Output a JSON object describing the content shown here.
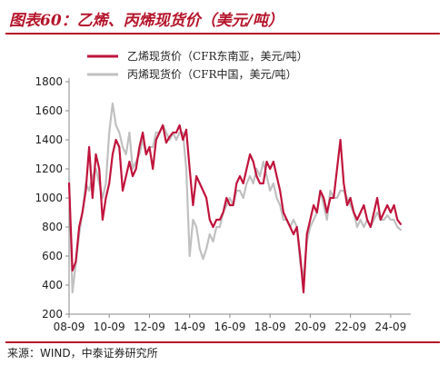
{
  "header": {
    "title": "图表60：乙烯、丙烯现货价（美元/吨）"
  },
  "footer": {
    "source": "来源：WIND，中泰证券研究所"
  },
  "colors": {
    "accent": "#b5152b",
    "ethylene": "#c0143c",
    "propylene": "#c0c0c0",
    "axis": "#888888"
  },
  "chart_data": {
    "type": "line",
    "title": "",
    "xlabel": "",
    "ylabel": "",
    "x_tick_labels": [
      "08-09",
      "10-09",
      "12-09",
      "14-09",
      "16-09",
      "18-09",
      "20-09",
      "22-09",
      "24-09"
    ],
    "y_ticks": [
      200,
      400,
      600,
      800,
      1000,
      1200,
      1400,
      1600,
      1800
    ],
    "xlim": [
      "2008-09",
      "2025-09"
    ],
    "ylim": [
      200,
      1800
    ],
    "grid": false,
    "legend_position": "top",
    "series": [
      {
        "name": "乙烯现货价（CFR东南亚，美元/吨）",
        "color": "#c0143c",
        "x": [
          "2008-09",
          "2008-11",
          "2009-01",
          "2009-03",
          "2009-05",
          "2009-07",
          "2009-09",
          "2009-11",
          "2010-01",
          "2010-03",
          "2010-05",
          "2010-07",
          "2010-09",
          "2010-11",
          "2011-01",
          "2011-03",
          "2011-05",
          "2011-07",
          "2011-09",
          "2011-11",
          "2012-01",
          "2012-03",
          "2012-05",
          "2012-07",
          "2012-09",
          "2012-11",
          "2013-01",
          "2013-03",
          "2013-05",
          "2013-07",
          "2013-09",
          "2013-11",
          "2014-01",
          "2014-03",
          "2014-05",
          "2014-07",
          "2014-09",
          "2014-11",
          "2015-01",
          "2015-03",
          "2015-05",
          "2015-07",
          "2015-09",
          "2015-11",
          "2016-01",
          "2016-03",
          "2016-05",
          "2016-07",
          "2016-09",
          "2016-11",
          "2017-01",
          "2017-03",
          "2017-05",
          "2017-07",
          "2017-09",
          "2017-11",
          "2018-01",
          "2018-03",
          "2018-05",
          "2018-07",
          "2018-09",
          "2018-11",
          "2019-01",
          "2019-03",
          "2019-05",
          "2019-07",
          "2019-09",
          "2019-11",
          "2020-01",
          "2020-03",
          "2020-05",
          "2020-07",
          "2020-09",
          "2020-11",
          "2021-01",
          "2021-03",
          "2021-05",
          "2021-07",
          "2021-09",
          "2021-11",
          "2022-01",
          "2022-03",
          "2022-05",
          "2022-07",
          "2022-09",
          "2022-11",
          "2023-01",
          "2023-03",
          "2023-05",
          "2023-07",
          "2023-09",
          "2023-11",
          "2024-01",
          "2024-03",
          "2024-05",
          "2024-07",
          "2024-09",
          "2024-11",
          "2025-01",
          "2025-03"
        ],
        "values": [
          1100,
          500,
          560,
          800,
          900,
          1050,
          1350,
          1000,
          1300,
          1200,
          850,
          1000,
          1100,
          1300,
          1400,
          1350,
          1050,
          1150,
          1250,
          1150,
          1200,
          1350,
          1450,
          1300,
          1350,
          1200,
          1400,
          1450,
          1500,
          1380,
          1420,
          1450,
          1450,
          1500,
          1400,
          1470,
          1200,
          950,
          1150,
          1100,
          1050,
          1000,
          850,
          800,
          850,
          850,
          900,
          1000,
          950,
          950,
          1100,
          1150,
          1100,
          1200,
          1300,
          1250,
          1150,
          1100,
          1100,
          1250,
          1200,
          1250,
          1150,
          1050,
          900,
          850,
          800,
          750,
          800,
          600,
          350,
          750,
          850,
          950,
          900,
          1050,
          1000,
          900,
          1000,
          1000,
          1200,
          1400,
          1100,
          950,
          1000,
          900,
          850,
          900,
          950,
          850,
          800,
          900,
          1000,
          850,
          900,
          950,
          900,
          950,
          850,
          820
        ]
      },
      {
        "name": "丙烯现货价（CFR中国，美元/吨）",
        "color": "#c0c0c0",
        "x": [
          "2008-09",
          "2008-11",
          "2009-01",
          "2009-03",
          "2009-05",
          "2009-07",
          "2009-09",
          "2009-11",
          "2010-01",
          "2010-03",
          "2010-05",
          "2010-07",
          "2010-09",
          "2010-11",
          "2011-01",
          "2011-03",
          "2011-05",
          "2011-07",
          "2011-09",
          "2011-11",
          "2012-01",
          "2012-03",
          "2012-05",
          "2012-07",
          "2012-09",
          "2012-11",
          "2013-01",
          "2013-03",
          "2013-05",
          "2013-07",
          "2013-09",
          "2013-11",
          "2014-01",
          "2014-03",
          "2014-05",
          "2014-07",
          "2014-09",
          "2014-11",
          "2015-01",
          "2015-03",
          "2015-05",
          "2015-07",
          "2015-09",
          "2015-11",
          "2016-01",
          "2016-03",
          "2016-05",
          "2016-07",
          "2016-09",
          "2016-11",
          "2017-01",
          "2017-03",
          "2017-05",
          "2017-07",
          "2017-09",
          "2017-11",
          "2018-01",
          "2018-03",
          "2018-05",
          "2018-07",
          "2018-09",
          "2018-11",
          "2019-01",
          "2019-03",
          "2019-05",
          "2019-07",
          "2019-09",
          "2019-11",
          "2020-01",
          "2020-03",
          "2020-05",
          "2020-07",
          "2020-09",
          "2020-11",
          "2021-01",
          "2021-03",
          "2021-05",
          "2021-07",
          "2021-09",
          "2021-11",
          "2022-01",
          "2022-03",
          "2022-05",
          "2022-07",
          "2022-09",
          "2022-11",
          "2023-01",
          "2023-03",
          "2023-05",
          "2023-07",
          "2023-09",
          "2023-11",
          "2024-01",
          "2024-03",
          "2024-05",
          "2024-07",
          "2024-09",
          "2024-11",
          "2025-01",
          "2025-03"
        ],
        "values": [
          1150,
          350,
          550,
          750,
          900,
          1100,
          1050,
          1150,
          1200,
          1100,
          1000,
          1100,
          1450,
          1650,
          1500,
          1450,
          1350,
          1300,
          1450,
          1200,
          1250,
          1300,
          1400,
          1300,
          1350,
          1350,
          1450,
          1450,
          1500,
          1450,
          1400,
          1450,
          1400,
          1450,
          1450,
          1200,
          600,
          850,
          800,
          650,
          580,
          650,
          750,
          700,
          800,
          800,
          900,
          950,
          1000,
          950,
          1050,
          1050,
          1000,
          1100,
          1150,
          1100,
          1200,
          1150,
          1250,
          1150,
          1050,
          1100,
          1000,
          950,
          850,
          850,
          800,
          850,
          800,
          550,
          450,
          700,
          800,
          850,
          900,
          1050,
          950,
          850,
          1050,
          1000,
          1000,
          1050,
          1050,
          1000,
          950,
          900,
          800,
          850,
          800,
          850,
          800,
          850,
          900,
          850,
          850,
          880,
          850,
          850,
          800,
          780
        ]
      }
    ]
  }
}
